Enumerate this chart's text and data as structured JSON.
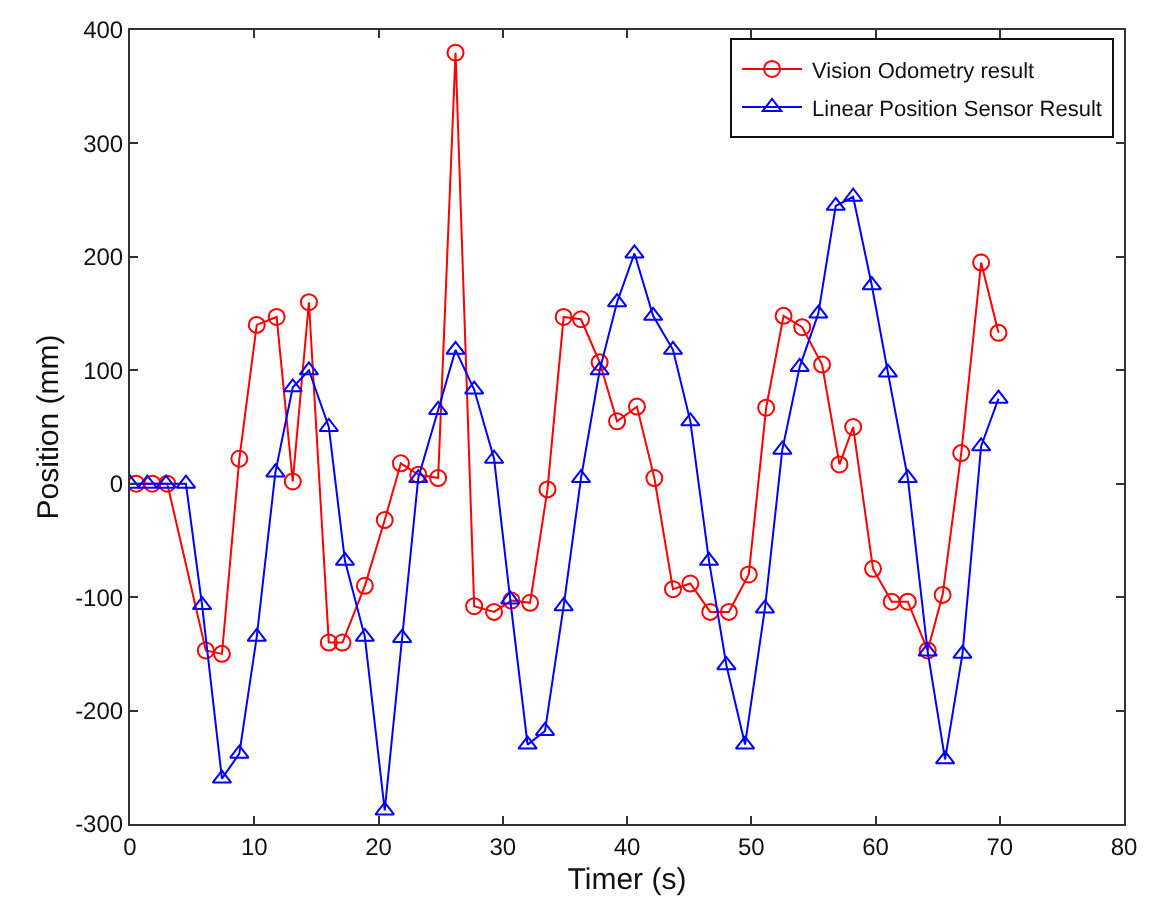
{
  "chart_data": {
    "type": "line",
    "xlabel": "Timer (s)",
    "ylabel": "Position (mm)",
    "xlim": [
      0,
      80
    ],
    "xticks": [
      0,
      10,
      20,
      30,
      40,
      50,
      60,
      70,
      80
    ],
    "ylim": [
      -300,
      400
    ],
    "yticks": [
      -300,
      -200,
      -100,
      0,
      100,
      200,
      300,
      400
    ],
    "legend": "top right",
    "series": [
      {
        "name": "Vision Odometry result",
        "color": "#ff0000",
        "marker": "circle",
        "x": [
          0.5,
          1.8,
          3.0,
          6.1,
          7.4,
          8.8,
          10.2,
          11.8,
          13.1,
          14.4,
          16.0,
          17.1,
          18.9,
          20.5,
          21.8,
          23.2,
          24.8,
          26.2,
          27.7,
          29.3,
          30.7,
          32.2,
          33.6,
          34.9,
          36.3,
          37.8,
          39.2,
          40.8,
          42.2,
          43.7,
          45.1,
          46.7,
          48.2,
          49.8,
          51.2,
          52.6,
          54.1,
          55.7,
          57.1,
          58.2,
          59.8,
          61.3,
          62.6,
          64.2,
          65.4,
          66.9,
          68.5,
          69.9
        ],
        "values": [
          0,
          0,
          0,
          -147,
          -150,
          22,
          140,
          147,
          2,
          160,
          -140,
          -140,
          -90,
          -32,
          18,
          8,
          5,
          380,
          -108,
          -113,
          -103,
          -105,
          -5,
          147,
          145,
          107,
          55,
          68,
          5,
          -93,
          -88,
          -113,
          -113,
          -80,
          67,
          148,
          138,
          105,
          17,
          50,
          -75,
          -104,
          -104,
          -147,
          -98,
          27,
          195,
          133
        ]
      },
      {
        "name": "Linear Position Sensor Result",
        "color": "#0000ff",
        "marker": "triangle",
        "x": [
          0,
          1.4,
          2.9,
          4.5,
          5.8,
          7.4,
          8.8,
          10.2,
          11.7,
          13.1,
          14.4,
          16.0,
          17.3,
          18.9,
          20.5,
          21.9,
          23.2,
          24.8,
          26.2,
          27.7,
          29.3,
          30.6,
          32.0,
          33.4,
          34.9,
          36.3,
          37.8,
          39.2,
          40.6,
          42.1,
          43.7,
          45.1,
          46.6,
          48.0,
          49.5,
          51.1,
          52.5,
          53.9,
          55.4,
          56.8,
          58.2,
          59.7,
          61.0,
          62.6,
          64.2,
          65.6,
          67.0,
          68.5,
          69.9
        ],
        "values": [
          0,
          0,
          0,
          0,
          -107,
          -260,
          -238,
          -135,
          10,
          85,
          100,
          50,
          -68,
          -135,
          -288,
          -136,
          5,
          65,
          118,
          83,
          22,
          -102,
          -230,
          -218,
          -108,
          5,
          100,
          160,
          203,
          148,
          118,
          55,
          -68,
          -160,
          -230,
          -110,
          30,
          103,
          150,
          245,
          253,
          175,
          98,
          5,
          -148,
          -243,
          -150,
          33,
          75
        ]
      }
    ]
  }
}
